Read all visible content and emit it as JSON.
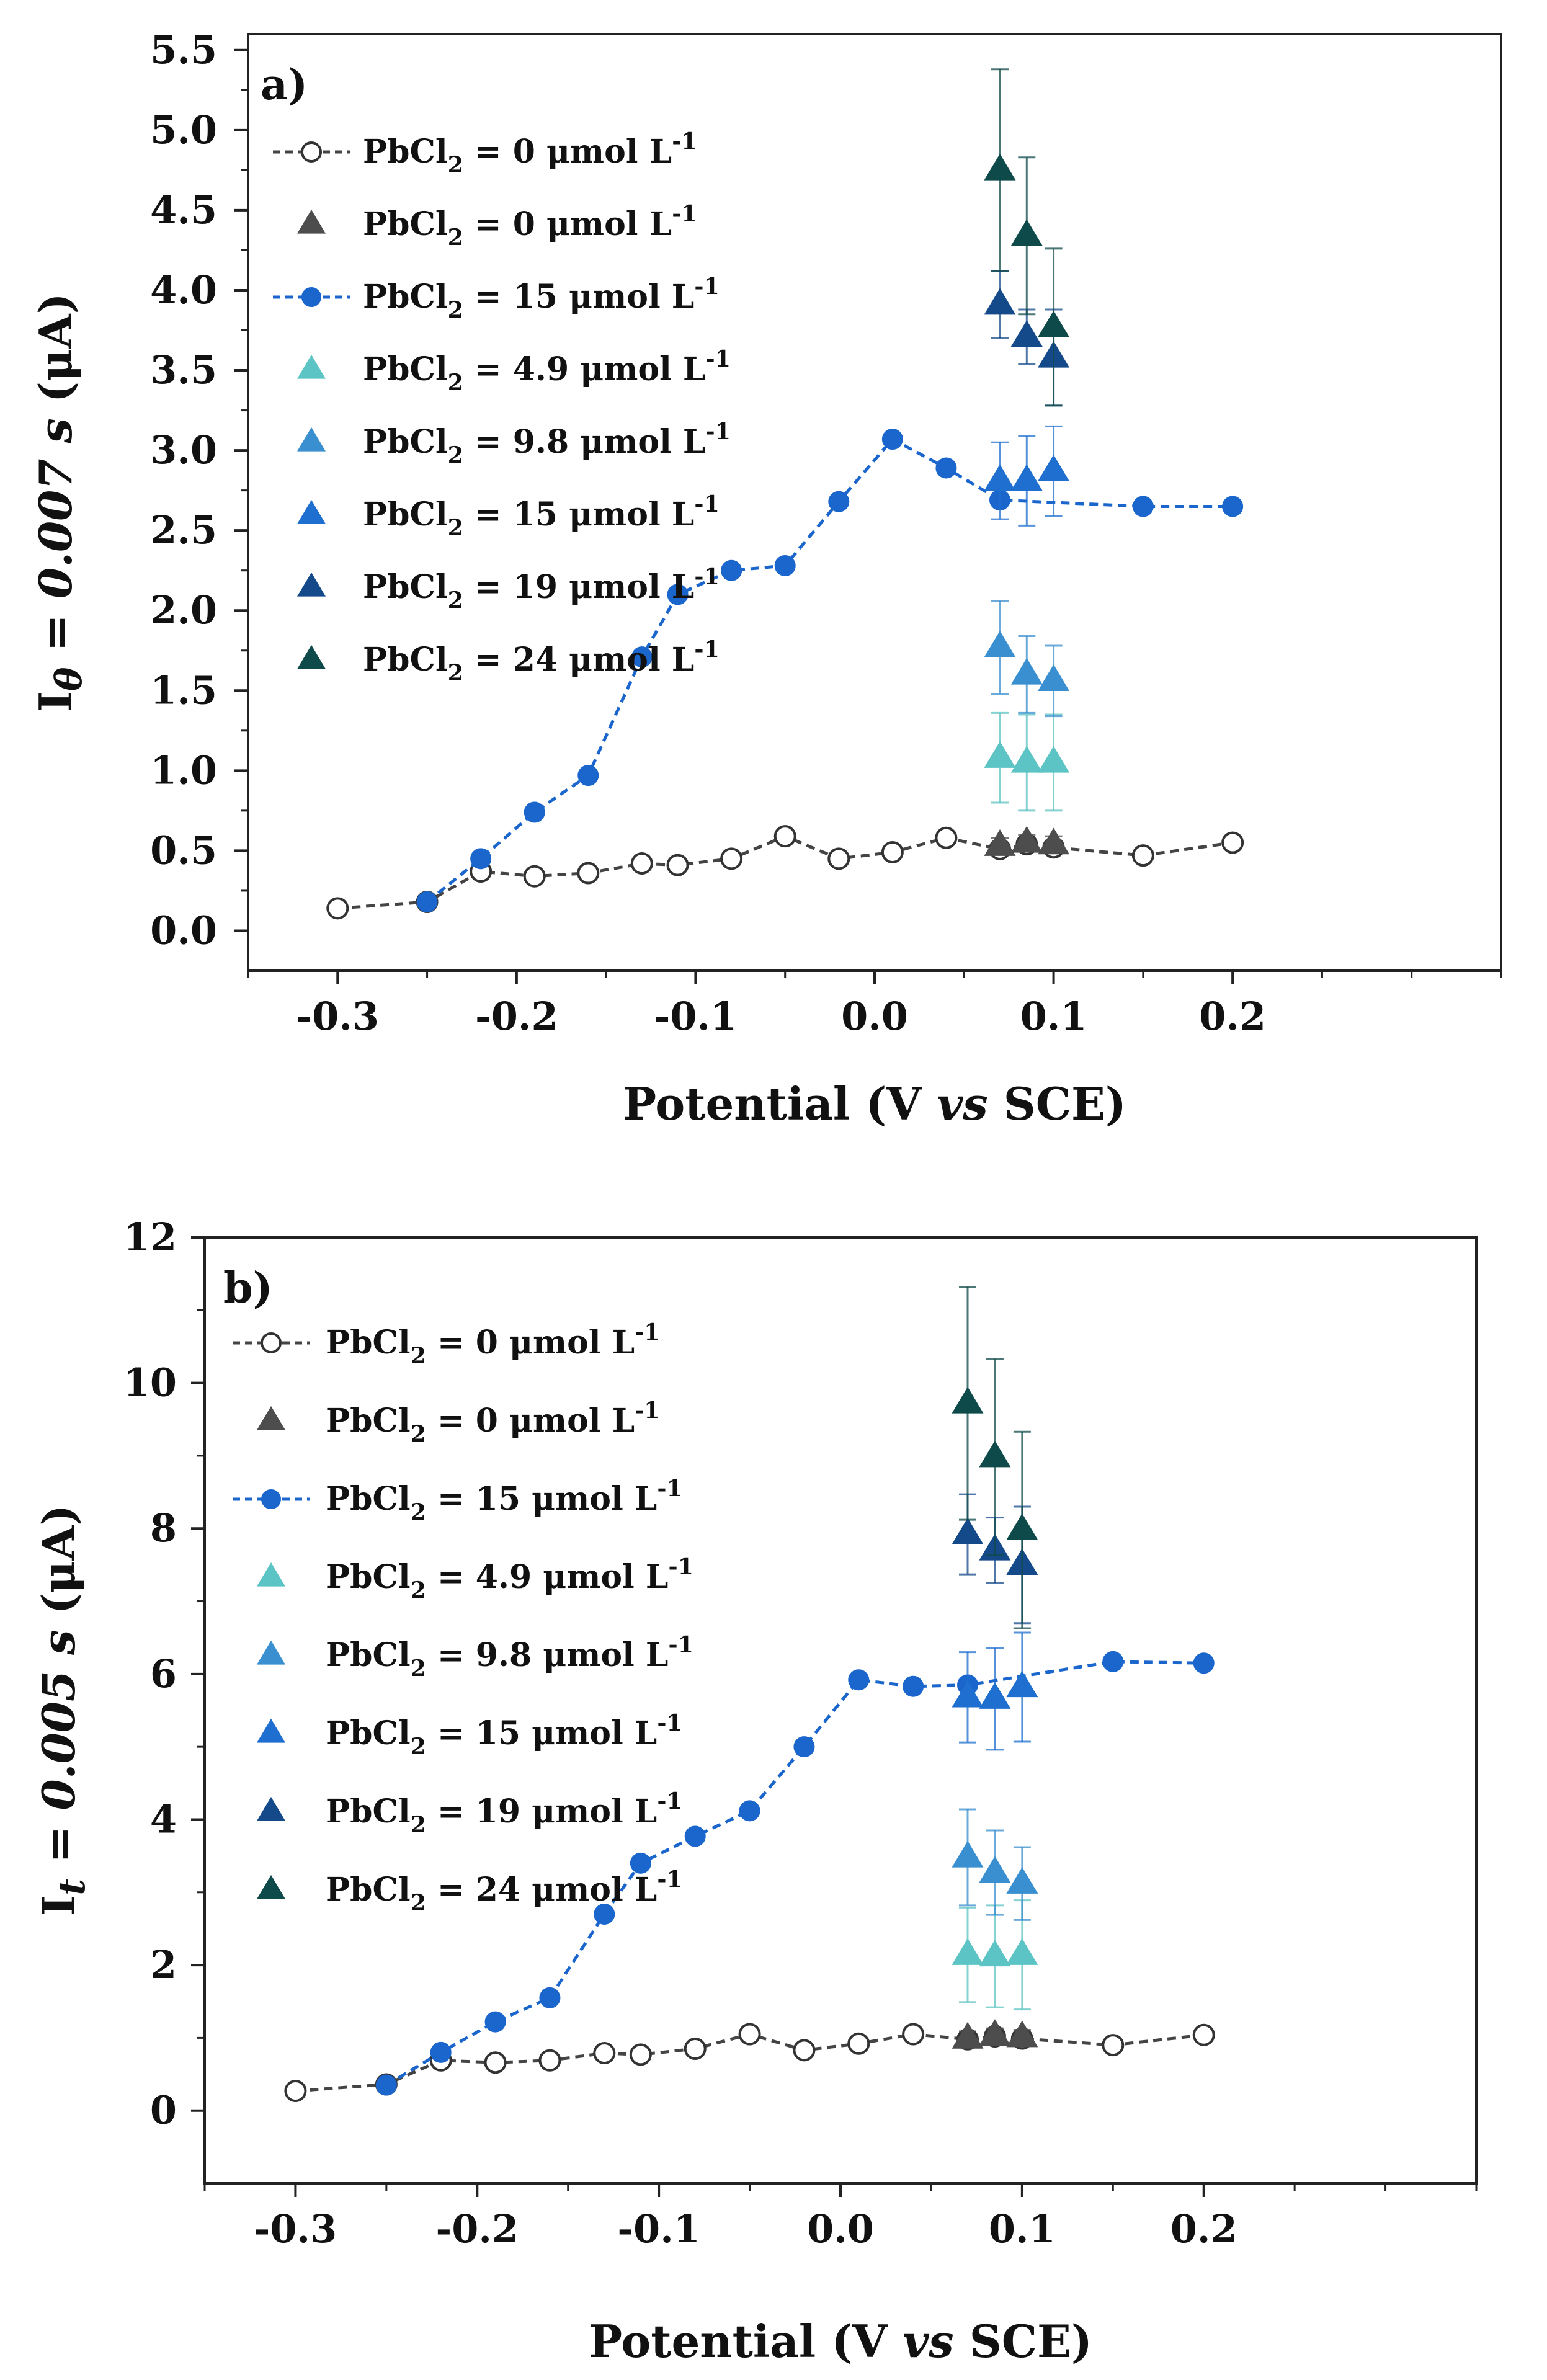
{
  "chart_data": [
    {
      "type": "scatter",
      "panel_label": "a)",
      "title": "",
      "xlabel": {
        "main": "Potential (V ",
        "italic": "vs",
        "tail": " SCE)"
      },
      "ylabel": {
        "prefix": "I",
        "sub": "θ",
        "middle": " = 0.007 ",
        "unit_italic": "s",
        "tail": " (μA)"
      },
      "xlim": [
        -0.35,
        0.35
      ],
      "ylim": [
        -0.25,
        5.6
      ],
      "xticks": [
        -0.3,
        -0.2,
        -0.1,
        0.0,
        0.1,
        0.2
      ],
      "xtick_labels": [
        "-0.3",
        "-0.2",
        "-0.1",
        "0.0",
        "0.1",
        "0.2"
      ],
      "yticks": [
        0.0,
        0.5,
        1.0,
        1.5,
        2.0,
        2.5,
        3.0,
        3.5,
        4.0,
        4.5,
        5.0,
        5.5
      ],
      "ytick_labels": [
        "0.0",
        "0.5",
        "1.0",
        "1.5",
        "2.0",
        "2.5",
        "3.0",
        "3.5",
        "4.0",
        "4.5",
        "5.0",
        "5.5"
      ],
      "legend_position": "top-left",
      "series": [
        {
          "name": "PbCl2 = 0 μmol L-1 (line)",
          "legend": {
            "pre": "PbCl",
            "sub": "2",
            "mid": " = 0 μmol L",
            "sup": "-1"
          },
          "marker": "circle-open",
          "line": "dashed",
          "color": "#444444",
          "x": [
            -0.3,
            -0.25,
            -0.22,
            -0.19,
            -0.16,
            -0.13,
            -0.11,
            -0.08,
            -0.05,
            -0.02,
            0.01,
            0.04,
            0.07,
            0.085,
            0.1,
            0.15,
            0.2
          ],
          "y": [
            0.14,
            0.18,
            0.37,
            0.34,
            0.36,
            0.42,
            0.41,
            0.45,
            0.59,
            0.45,
            0.49,
            0.58,
            0.51,
            0.54,
            0.52,
            0.47,
            0.55
          ]
        },
        {
          "name": "PbCl2 = 0 μmol L-1 (triangles)",
          "legend": {
            "pre": "PbCl",
            "sub": "2",
            "mid": " = 0 μmol L",
            "sup": "-1"
          },
          "marker": "triangle",
          "line": "none",
          "color": "#4d4d4d",
          "x": [
            0.07,
            0.085,
            0.1
          ],
          "y": [
            0.53,
            0.55,
            0.54
          ],
          "err": [
            0.05,
            0.05,
            0.05
          ]
        },
        {
          "name": "PbCl2 = 15 μmol L-1 (line)",
          "legend": {
            "pre": "PbCl",
            "sub": "2",
            "mid": " = 15 μmol L",
            "sup": "-1"
          },
          "marker": "circle-filled",
          "line": "dashed",
          "color": "#1a66cc",
          "x": [
            -0.25,
            -0.22,
            -0.19,
            -0.16,
            -0.13,
            -0.11,
            -0.08,
            -0.05,
            -0.02,
            0.01,
            0.04,
            0.07,
            0.15,
            0.2
          ],
          "y": [
            0.18,
            0.45,
            0.74,
            0.97,
            1.71,
            2.1,
            2.25,
            2.28,
            2.68,
            3.07,
            2.89,
            2.69,
            2.65,
            2.65
          ]
        },
        {
          "name": "PbCl2 = 4.9 μmol L-1",
          "legend": {
            "pre": "PbCl",
            "sub": "2",
            "mid": " =  4.9 μmol L",
            "sup": "-1"
          },
          "marker": "triangle",
          "line": "none",
          "color": "#5cc4c4",
          "x": [
            0.07,
            0.085,
            0.1
          ],
          "y": [
            1.08,
            1.05,
            1.05
          ],
          "err": [
            0.28,
            0.3,
            0.3
          ]
        },
        {
          "name": "PbCl2 = 9.8 μmol L-1",
          "legend": {
            "pre": "PbCl",
            "sub": "2",
            "mid": " = 9.8 μmol L",
            "sup": "-1"
          },
          "marker": "triangle",
          "line": "none",
          "color": "#3a8fd0",
          "x": [
            0.07,
            0.085,
            0.1
          ],
          "y": [
            1.77,
            1.6,
            1.56
          ],
          "err": [
            0.29,
            0.24,
            0.22
          ]
        },
        {
          "name": "PbCl2 = 15 μmol L-1 (triangles)",
          "legend": {
            "pre": "PbCl",
            "sub": "2",
            "mid": " = 15 μmol L",
            "sup": "-1"
          },
          "marker": "triangle",
          "line": "none",
          "color": "#1f6fd0",
          "x": [
            0.07,
            0.085,
            0.1
          ],
          "y": [
            2.81,
            2.81,
            2.87
          ],
          "err": [
            0.24,
            0.28,
            0.28
          ]
        },
        {
          "name": "PbCl2 = 19 μmol L-1",
          "legend": {
            "pre": "PbCl",
            "sub": "2",
            "mid": " = 19 μmol L",
            "sup": "-1"
          },
          "marker": "triangle",
          "line": "none",
          "color": "#154a8a",
          "x": [
            0.07,
            0.085,
            0.1
          ],
          "y": [
            3.91,
            3.71,
            3.58
          ],
          "err": [
            0.21,
            0.17,
            0.3
          ]
        },
        {
          "name": "PbCl2 = 24 μmol L-1",
          "legend": {
            "pre": "PbCl",
            "sub": "2",
            "mid": " = 24 μmol L",
            "sup": "-1"
          },
          "marker": "triangle",
          "line": "none",
          "color": "#0f4a4a",
          "x": [
            0.07,
            0.085,
            0.1
          ],
          "y": [
            4.75,
            4.34,
            3.77
          ],
          "err": [
            0.63,
            0.49,
            0.49
          ]
        }
      ]
    },
    {
      "type": "scatter",
      "panel_label": "b)",
      "title": "",
      "xlabel": {
        "main": "Potential (V ",
        "italic": "vs",
        "tail": " SCE)"
      },
      "ylabel": {
        "prefix": "I",
        "sub": "t",
        "middle": " = 0.005 ",
        "unit_italic": "s",
        "tail": " (μA)"
      },
      "xlim": [
        -0.35,
        0.35
      ],
      "ylim": [
        -1,
        12
      ],
      "xticks": [
        -0.3,
        -0.2,
        -0.1,
        0.0,
        0.1,
        0.2
      ],
      "xtick_labels": [
        "-0.3",
        "-0.2",
        "-0.1",
        "0.0",
        "0.1",
        "0.2"
      ],
      "yticks": [
        0,
        2,
        4,
        6,
        8,
        10,
        12
      ],
      "ytick_labels": [
        "0",
        "2",
        "4",
        "6",
        "8",
        "10",
        "12"
      ],
      "legend_position": "top-left",
      "series": [
        {
          "name": "PbCl2 = 0 μmol L-1 (line)",
          "legend": {
            "pre": "PbCl",
            "sub": "2",
            "mid": " = 0 μmol L",
            "sup": "-1"
          },
          "marker": "circle-open",
          "line": "dashed",
          "color": "#444444",
          "x": [
            -0.3,
            -0.25,
            -0.22,
            -0.19,
            -0.16,
            -0.13,
            -0.11,
            -0.08,
            -0.05,
            -0.02,
            0.01,
            0.04,
            0.07,
            0.085,
            0.1,
            0.15,
            0.2
          ],
          "y": [
            0.27,
            0.36,
            0.69,
            0.66,
            0.69,
            0.79,
            0.77,
            0.85,
            1.05,
            0.83,
            0.92,
            1.05,
            0.98,
            1.02,
            0.99,
            0.9,
            1.04
          ]
        },
        {
          "name": "PbCl2 = 0 μmol L-1 (triangles)",
          "legend": {
            "pre": "PbCl",
            "sub": "2",
            "mid": " = 0 μmol L",
            "sup": "-1"
          },
          "marker": "triangle",
          "line": "none",
          "color": "#4d4d4d",
          "x": [
            0.07,
            0.085,
            0.1
          ],
          "y": [
            0.99,
            1.03,
            1.01
          ],
          "err": [
            0.1,
            0.1,
            0.1
          ]
        },
        {
          "name": "PbCl2 = 15 μmol L-1 (line)",
          "legend": {
            "pre": "PbCl",
            "sub": "2",
            "mid": " = 15 μmol L",
            "sup": "-1"
          },
          "marker": "circle-filled",
          "line": "dashed",
          "color": "#1a66cc",
          "x": [
            -0.25,
            -0.22,
            -0.19,
            -0.16,
            -0.13,
            -0.11,
            -0.08,
            -0.05,
            -0.02,
            0.01,
            0.04,
            0.07,
            0.15,
            0.2
          ],
          "y": [
            0.35,
            0.8,
            1.22,
            1.55,
            2.7,
            3.4,
            3.77,
            4.12,
            5.0,
            5.92,
            5.83,
            5.85,
            6.17,
            6.15
          ]
        },
        {
          "name": "PbCl2 = 4.9 μmol L-1",
          "legend": {
            "pre": "PbCl",
            "sub": "2",
            "mid": " =  4.9 μmol L",
            "sup": "-1"
          },
          "marker": "triangle",
          "line": "none",
          "color": "#5cc4c4",
          "x": [
            0.07,
            0.085,
            0.1
          ],
          "y": [
            2.14,
            2.12,
            2.14
          ],
          "err": [
            0.65,
            0.7,
            0.75
          ]
        },
        {
          "name": "PbCl2 = 9.8 μmol L-1",
          "legend": {
            "pre": "PbCl",
            "sub": "2",
            "mid": " = 9.8 μmol L",
            "sup": "-1"
          },
          "marker": "triangle",
          "line": "none",
          "color": "#3a8fd0",
          "x": [
            0.07,
            0.085,
            0.1
          ],
          "y": [
            3.48,
            3.27,
            3.12
          ],
          "err": [
            0.66,
            0.58,
            0.5
          ]
        },
        {
          "name": "PbCl2 = 15 μmol L-1 (triangles)",
          "legend": {
            "pre": "PbCl",
            "sub": "2",
            "mid": " = 15 μmol L",
            "sup": "-1"
          },
          "marker": "triangle",
          "line": "none",
          "color": "#1f6fd0",
          "x": [
            0.07,
            0.085,
            0.1
          ],
          "y": [
            5.68,
            5.66,
            5.82
          ],
          "err": [
            0.62,
            0.7,
            0.75
          ]
        },
        {
          "name": "PbCl2 = 19 μmol L-1",
          "legend": {
            "pre": "PbCl",
            "sub": "2",
            "mid": " = 19 μmol L",
            "sup": "-1"
          },
          "marker": "triangle",
          "line": "none",
          "color": "#154a8a",
          "x": [
            0.07,
            0.085,
            0.1
          ],
          "y": [
            7.92,
            7.7,
            7.5
          ],
          "err": [
            0.55,
            0.45,
            0.8
          ]
        },
        {
          "name": "PbCl2 = 24 μmol L-1",
          "legend": {
            "pre": "PbCl",
            "sub": "2",
            "mid": " = 24 μmol L",
            "sup": "-1"
          },
          "marker": "triangle",
          "line": "none",
          "color": "#0f4a4a",
          "x": [
            0.07,
            0.085,
            0.1
          ],
          "y": [
            9.72,
            8.98,
            7.98
          ],
          "err": [
            1.6,
            1.35,
            1.35
          ]
        }
      ]
    }
  ]
}
